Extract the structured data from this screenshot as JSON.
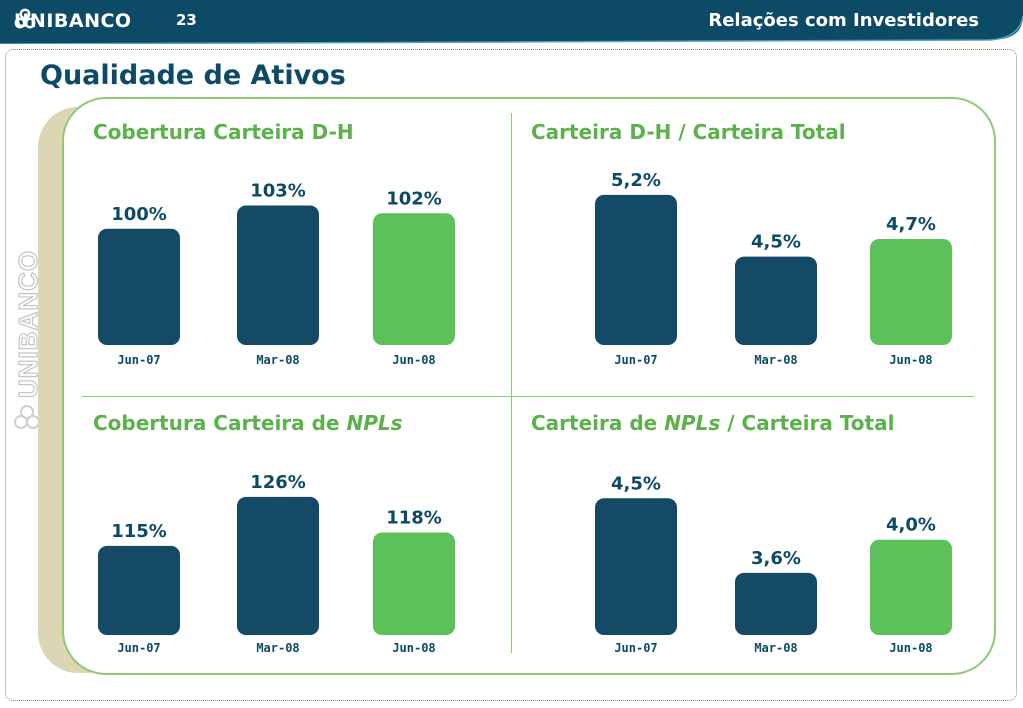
{
  "header": {
    "brand": "UNIBANCO",
    "page_number": "23",
    "section_title": "Relações com Investidores",
    "side_brand": "UNIBANCO"
  },
  "slide": {
    "title": "Qualidade de Ativos"
  },
  "colors": {
    "navy": "#0d4a66",
    "green": "#5bb14a",
    "bar_dark": "#154a66",
    "bar_light": "#5cc15a",
    "panel_border": "#8ec97a",
    "panel_shadow": "#dbd6b4"
  },
  "chart_data": [
    {
      "type": "bar",
      "title_parts": [
        "Cobertura Carteira D-H"
      ],
      "categories": [
        "Jun-07",
        "Mar-08",
        "Jun-08"
      ],
      "values": [
        100,
        103,
        102
      ],
      "labels": [
        "100%",
        "103%",
        "102%"
      ],
      "ylim": [
        85,
        105
      ]
    },
    {
      "type": "bar",
      "title_parts": [
        "Carteira D-H / Carteira Total"
      ],
      "categories": [
        "Jun-07",
        "Mar-08",
        "Jun-08"
      ],
      "values": [
        5.2,
        4.5,
        4.7
      ],
      "labels": [
        "5,2%",
        "4,5%",
        "4,7%"
      ],
      "ylim": [
        3.5,
        5.3
      ]
    },
    {
      "type": "bar",
      "title_parts": [
        "Cobertura Carteira de ",
        "NPLs"
      ],
      "categories": [
        "Jun-07",
        "Mar-08",
        "Jun-08"
      ],
      "values": [
        115,
        126,
        118
      ],
      "labels": [
        "115%",
        "126%",
        "118%"
      ],
      "ylim": [
        95,
        128
      ]
    },
    {
      "type": "bar",
      "title_parts": [
        "Carteira de ",
        "NPLs",
        " / Carteira Total"
      ],
      "categories": [
        "Jun-07",
        "Mar-08",
        "Jun-08"
      ],
      "values": [
        4.5,
        3.6,
        4.0
      ],
      "labels": [
        "4,5%",
        "3,6%",
        "4,0%"
      ],
      "ylim": [
        2.85,
        4.6
      ]
    }
  ]
}
